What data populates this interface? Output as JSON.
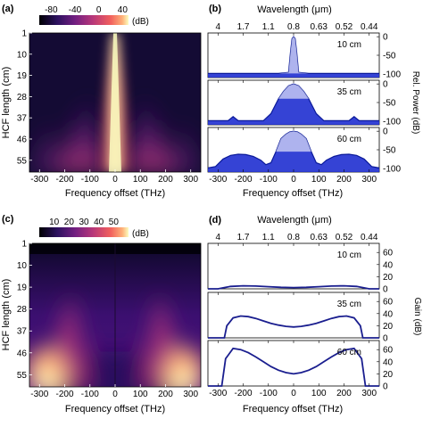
{
  "chart_data": [
    {
      "panel": "(a)",
      "type": "heatmap",
      "colorbar": {
        "ticks": [
          -80,
          -40,
          0,
          40
        ],
        "unit": "(dB)",
        "range": [
          -100,
          50
        ]
      },
      "xlabel": "Frequency offset (THz)",
      "ylabel": "HCF length (cm)",
      "xticks": [
        -300,
        -200,
        -100,
        0,
        100,
        200,
        300
      ],
      "xlim": [
        -340,
        340
      ],
      "yticks": [
        1,
        10,
        19,
        28,
        37,
        46,
        55
      ],
      "ylim": [
        1,
        60
      ]
    },
    {
      "panel": "(b)",
      "type": "line",
      "top_axis_label": "Wavelength (μm)",
      "top_ticks": [
        "4",
        "1.7",
        "1.1",
        "0.8",
        "0.63",
        "0.52",
        "0.44"
      ],
      "top_tick_freq": [
        -300,
        -200,
        -100,
        0,
        100,
        200,
        300
      ],
      "xlabel": "Frequency offset (THz)",
      "ylabel": "Rel. Power (dB)",
      "xticks": [
        -300,
        -200,
        -100,
        0,
        100,
        200,
        300
      ],
      "xlim": [
        -340,
        340
      ],
      "yticks": [
        0,
        -50,
        -100
      ],
      "ylim": [
        -110,
        10
      ],
      "series": [
        {
          "name": "10 cm",
          "x": [
            -340,
            -60,
            -20,
            -12,
            -6,
            0,
            6,
            12,
            20,
            60,
            340
          ],
          "y": [
            -99,
            -99,
            -96,
            -40,
            -5,
            0,
            -5,
            -40,
            -96,
            -99,
            -99
          ]
        },
        {
          "name": "35 cm",
          "x": [
            -340,
            -260,
            -240,
            -220,
            -120,
            -90,
            -60,
            -40,
            -20,
            0,
            20,
            40,
            60,
            90,
            120,
            220,
            240,
            260,
            340
          ],
          "y": [
            -99,
            -99,
            -88,
            -99,
            -99,
            -80,
            -40,
            -20,
            -5,
            0,
            -5,
            -20,
            -40,
            -80,
            -99,
            -99,
            -88,
            -99,
            -99
          ]
        },
        {
          "name": "60 cm",
          "x": [
            -340,
            -310,
            -280,
            -250,
            -220,
            -190,
            -160,
            -130,
            -110,
            -90,
            -70,
            -50,
            -30,
            -15,
            0,
            15,
            30,
            50,
            70,
            90,
            110,
            130,
            160,
            190,
            220,
            250,
            280,
            310,
            340
          ],
          "y": [
            -99,
            -95,
            -75,
            -65,
            -62,
            -63,
            -68,
            -78,
            -90,
            -85,
            -55,
            -20,
            -8,
            -2,
            0,
            -2,
            -8,
            -20,
            -55,
            -85,
            -90,
            -78,
            -68,
            -63,
            -62,
            -65,
            -75,
            -95,
            -99
          ]
        }
      ]
    },
    {
      "panel": "(c)",
      "type": "heatmap",
      "colorbar": {
        "ticks": [
          10,
          20,
          30,
          40,
          50
        ],
        "unit": "(dB)",
        "range": [
          0,
          60
        ]
      },
      "xlabel": "Frequency offset (THz)",
      "ylabel": "HCF length (cm)",
      "xticks": [
        -300,
        -200,
        -100,
        0,
        100,
        200,
        300
      ],
      "xlim": [
        -340,
        340
      ],
      "yticks": [
        1,
        10,
        19,
        28,
        37,
        46,
        55
      ],
      "ylim": [
        1,
        60
      ]
    },
    {
      "panel": "(d)",
      "type": "line",
      "top_axis_label": "Wavelength (μm)",
      "top_ticks": [
        "4",
        "1.7",
        "1.1",
        "0.8",
        "0.63",
        "0.52",
        "0.44"
      ],
      "top_tick_freq": [
        -300,
        -200,
        -100,
        0,
        100,
        200,
        300
      ],
      "xlabel": "Frequency offset (THz)",
      "ylabel": "Gain (dB)",
      "xticks": [
        -300,
        -200,
        -100,
        0,
        100,
        200,
        300
      ],
      "xlim": [
        -340,
        340
      ],
      "yticks": [
        0,
        20,
        40,
        60
      ],
      "ylim": [
        0,
        75
      ],
      "series": [
        {
          "name": "10 cm",
          "x": [
            -340,
            -300,
            -250,
            -200,
            -150,
            -100,
            -50,
            0,
            50,
            100,
            150,
            200,
            250,
            300,
            340
          ],
          "y": [
            0,
            0,
            4,
            5,
            4.5,
            3.5,
            2.5,
            2,
            2.5,
            3.5,
            4.5,
            5,
            4,
            0,
            0
          ]
        },
        {
          "name": "35 cm",
          "x": [
            -340,
            -275,
            -265,
            -240,
            -210,
            -180,
            -150,
            -120,
            -90,
            -60,
            -30,
            0,
            30,
            60,
            90,
            120,
            150,
            180,
            210,
            240,
            265,
            275,
            340
          ],
          "y": [
            0,
            0,
            20,
            33,
            36,
            35,
            32,
            28,
            24,
            21,
            19,
            18,
            19,
            21,
            24,
            28,
            32,
            35,
            36,
            33,
            20,
            0,
            0
          ]
        },
        {
          "name": "60 cm",
          "x": [
            -340,
            -285,
            -270,
            -240,
            -210,
            -180,
            -150,
            -120,
            -90,
            -60,
            -30,
            0,
            30,
            60,
            90,
            120,
            150,
            180,
            210,
            240,
            270,
            285,
            340
          ],
          "y": [
            0,
            0,
            45,
            62,
            60,
            55,
            48,
            40,
            32,
            26,
            22,
            20,
            22,
            26,
            32,
            40,
            48,
            55,
            60,
            62,
            45,
            0,
            0
          ]
        }
      ]
    }
  ]
}
